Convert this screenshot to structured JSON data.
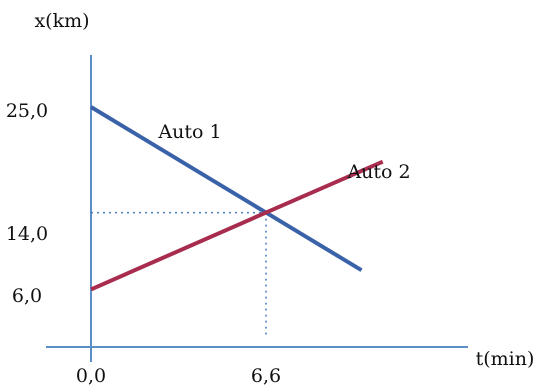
{
  "chart_data": {
    "type": "line",
    "xlabel": "t(min)",
    "ylabel": "x(km)",
    "x_ticks": [
      "0,0",
      "6,6"
    ],
    "y_ticks": [
      "25,0",
      "14,0",
      "6,0"
    ],
    "intersection": {
      "x": 6.6,
      "y": 14.0
    },
    "series": [
      {
        "name": "Auto 1",
        "color": "#3a62a8",
        "points": [
          [
            0.0,
            25.0
          ],
          [
            6.6,
            14.0
          ],
          [
            10.2,
            8.0
          ]
        ]
      },
      {
        "name": "Auto 2",
        "color": "#a82c4e",
        "points": [
          [
            0.0,
            6.0
          ],
          [
            6.6,
            14.0
          ],
          [
            11.0,
            19.3
          ]
        ]
      }
    ],
    "grid": false,
    "legend": "inline"
  }
}
